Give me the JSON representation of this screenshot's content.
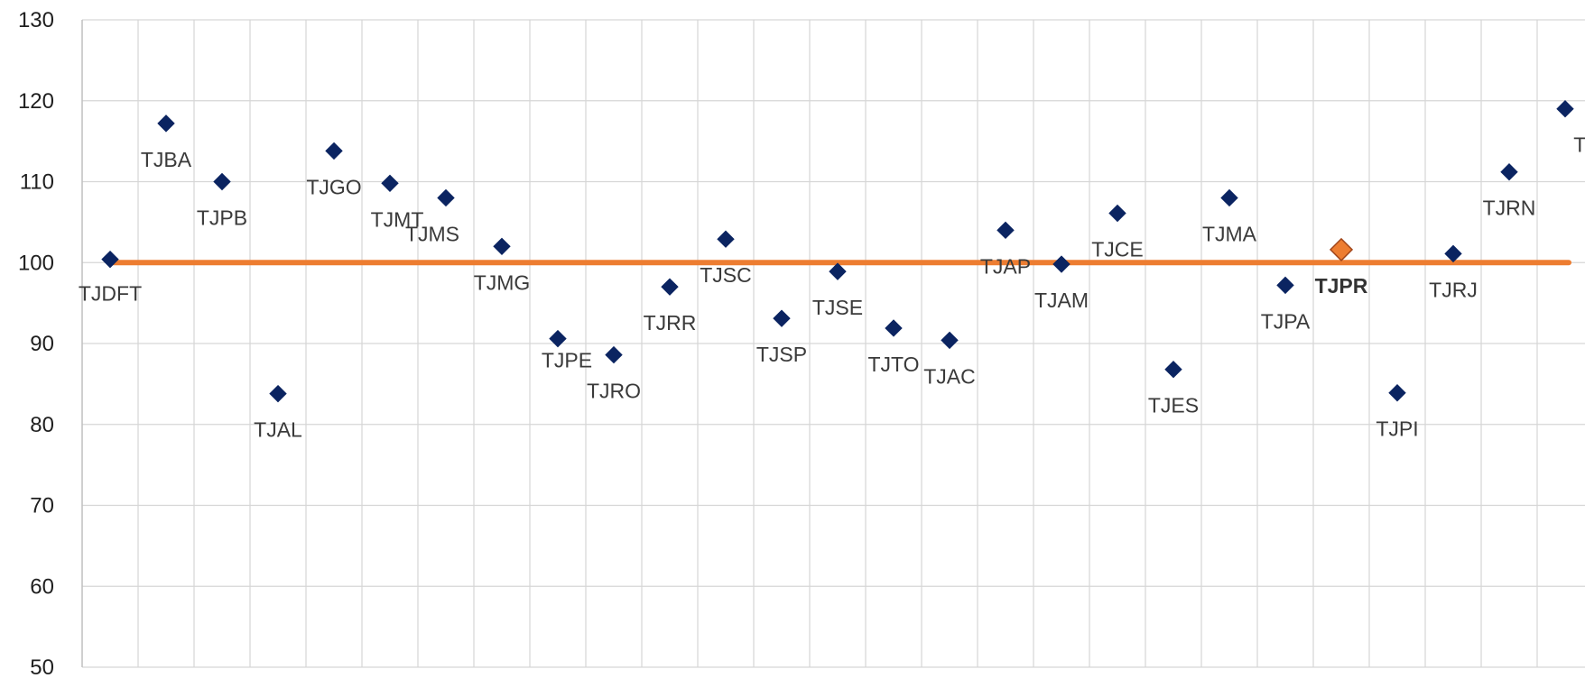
{
  "chart_data": {
    "type": "scatter",
    "title": "",
    "xlabel": "",
    "ylabel": "",
    "ylim": [
      50,
      130
    ],
    "yticks": [
      50,
      60,
      70,
      80,
      90,
      100,
      110,
      120,
      130
    ],
    "grid": true,
    "reference_line": {
      "value": 100,
      "color": "#ed7d31"
    },
    "marker_color": "#0b2461",
    "highlight_color": "#ed7d31",
    "points": [
      {
        "label": "TJDFT",
        "value": 100.4
      },
      {
        "label": "TJBA",
        "value": 117.2
      },
      {
        "label": "TJPB",
        "value": 110.0
      },
      {
        "label": "TJAL",
        "value": 83.8
      },
      {
        "label": "TJGO",
        "value": 113.8
      },
      {
        "label": "TJMT",
        "value": 109.8
      },
      {
        "label": "TJMS",
        "value": 108.0
      },
      {
        "label": "TJMG",
        "value": 102.0
      },
      {
        "label": "TJPE",
        "value": 90.6
      },
      {
        "label": "TJRO",
        "value": 88.6
      },
      {
        "label": "TJRR",
        "value": 97.0
      },
      {
        "label": "TJSC",
        "value": 102.9
      },
      {
        "label": "TJSP",
        "value": 93.1
      },
      {
        "label": "TJSE",
        "value": 98.9
      },
      {
        "label": "TJTO",
        "value": 91.9
      },
      {
        "label": "TJAC",
        "value": 90.4
      },
      {
        "label": "TJAP",
        "value": 104.0
      },
      {
        "label": "TJAM",
        "value": 99.8
      },
      {
        "label": "TJCE",
        "value": 106.1
      },
      {
        "label": "TJES",
        "value": 86.8
      },
      {
        "label": "TJMA",
        "value": 108.0
      },
      {
        "label": "TJPA",
        "value": 97.2
      },
      {
        "label": "TJPR",
        "value": 101.6,
        "highlight": true
      },
      {
        "label": "TJPI",
        "value": 83.9
      },
      {
        "label": "TJRJ",
        "value": 101.1
      },
      {
        "label": "TJRN",
        "value": 111.2
      },
      {
        "label": "TJRS",
        "value": 119.0
      }
    ]
  }
}
